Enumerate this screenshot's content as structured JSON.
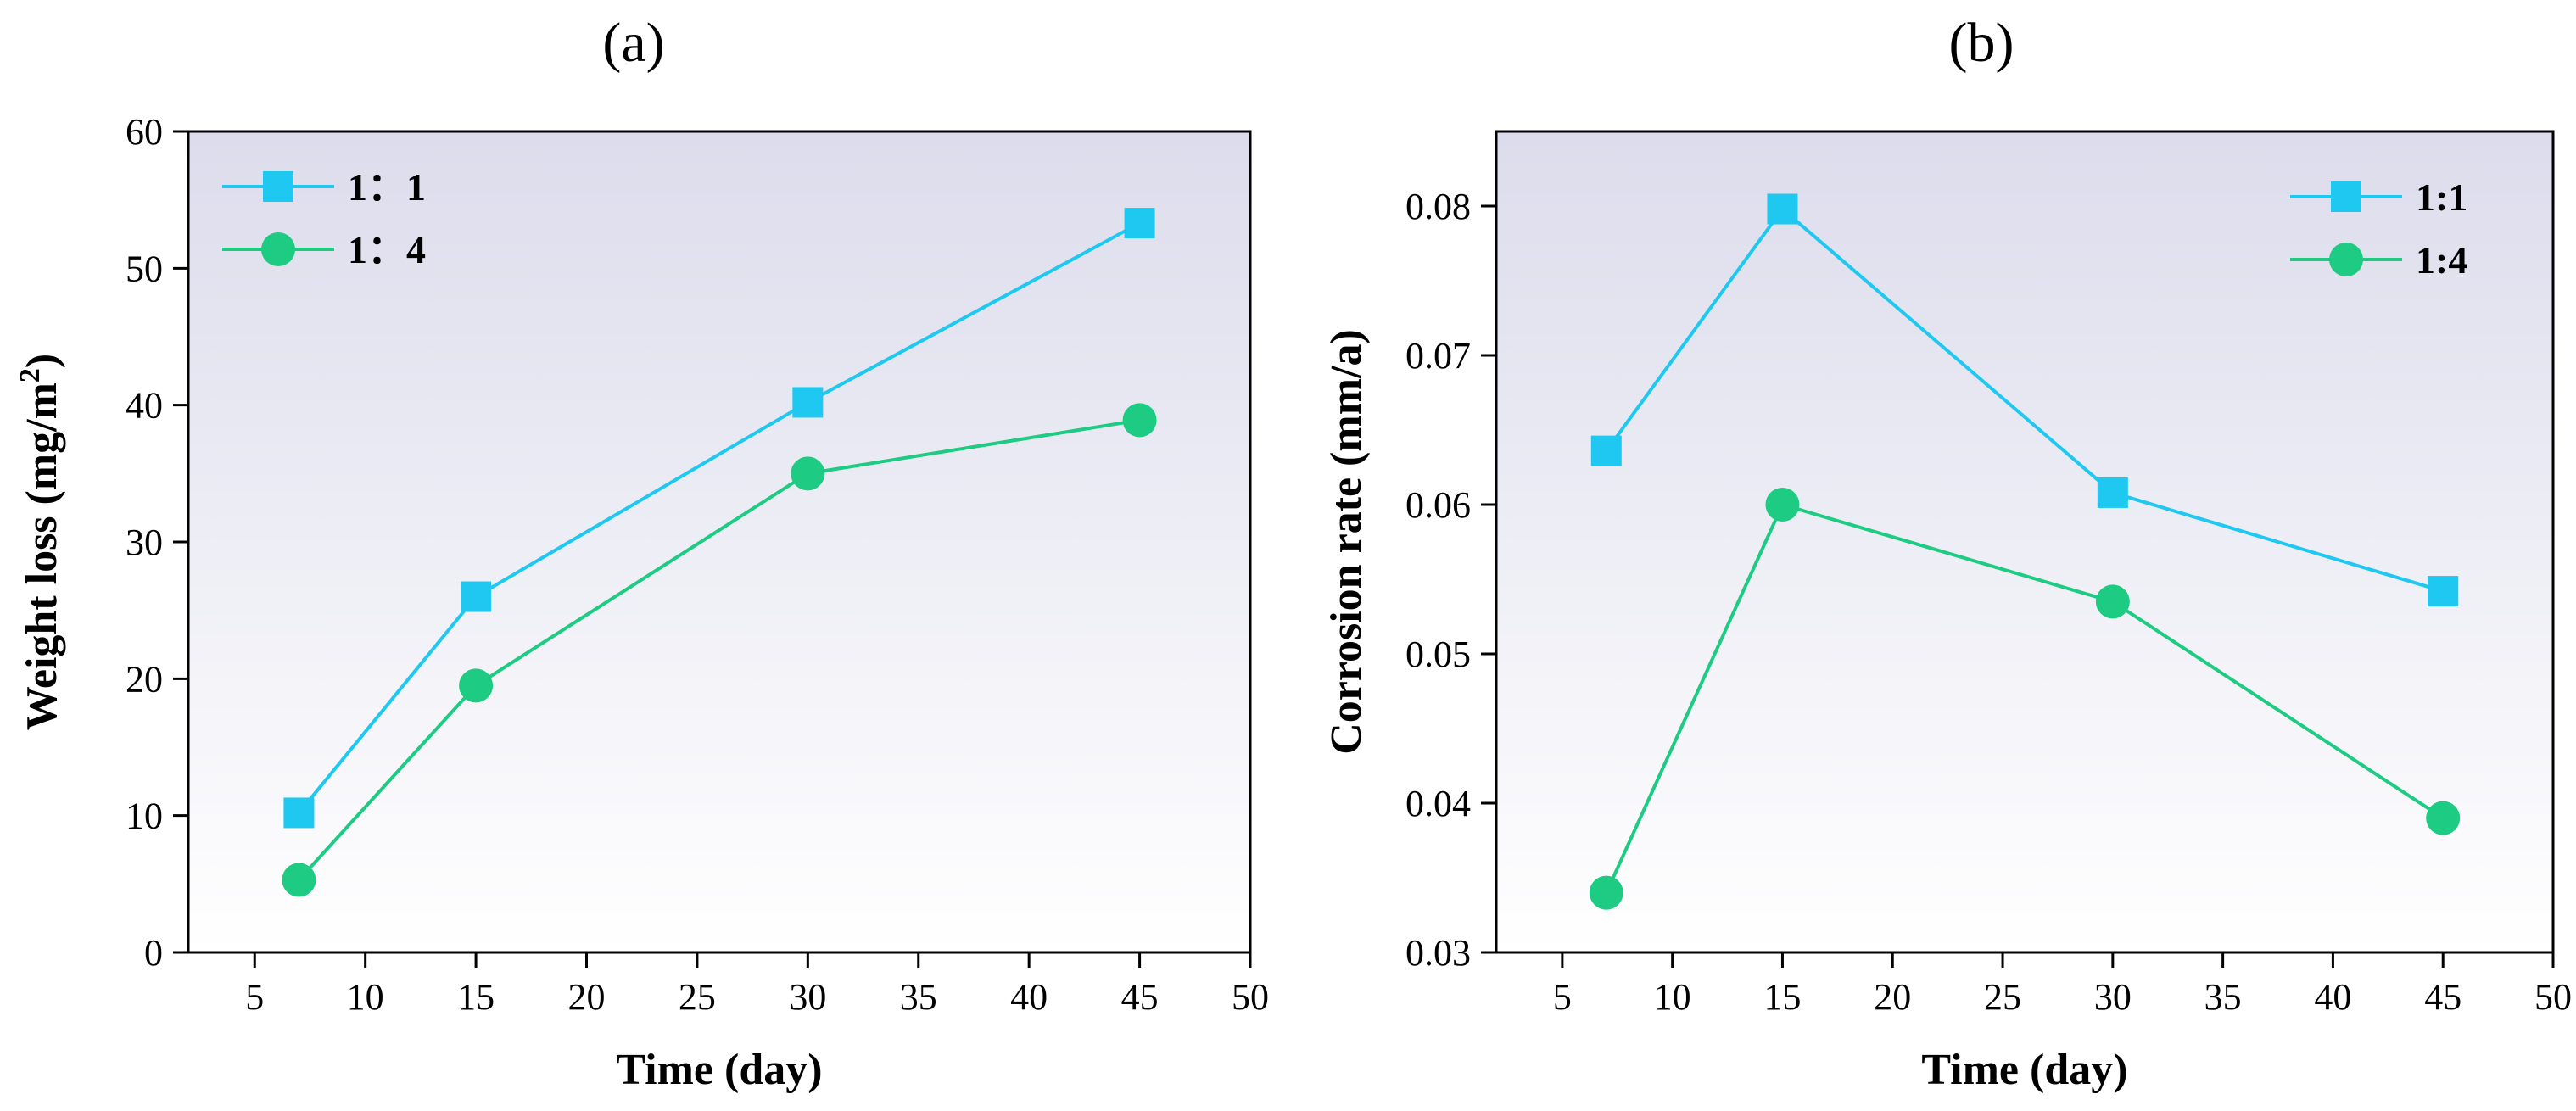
{
  "chart_data": [
    {
      "type": "line",
      "panel_label": "(a)",
      "title": "",
      "xlabel": "Time (day)",
      "ylabel": "Weight loss (mg/m²)",
      "ylabel_parts": {
        "main": "Weight loss (mg/m",
        "sup": "2",
        "end": ")"
      },
      "xlim": [
        2,
        50
      ],
      "ylim": [
        0,
        60
      ],
      "xticks": [
        5,
        10,
        15,
        20,
        25,
        30,
        35,
        40,
        45,
        50
      ],
      "yticks": [
        0,
        10,
        20,
        30,
        40,
        50,
        60
      ],
      "legend_position": "top-left",
      "x": [
        7,
        15,
        30,
        45
      ],
      "series": [
        {
          "name": "1：1",
          "marker": "square",
          "color": "#1EC8F0",
          "values": [
            10.2,
            26.0,
            40.2,
            53.3
          ]
        },
        {
          "name": "1：4",
          "marker": "circle",
          "color": "#1DCB82",
          "values": [
            5.3,
            19.5,
            35.0,
            38.9
          ]
        }
      ]
    },
    {
      "type": "line",
      "panel_label": "(b)",
      "title": "",
      "xlabel": "Time (day)",
      "ylabel": "Corrosion rate (mm/a)",
      "xlim": [
        2,
        50
      ],
      "ylim": [
        0.03,
        0.085
      ],
      "xticks": [
        5,
        10,
        15,
        20,
        25,
        30,
        35,
        40,
        45,
        50
      ],
      "yticks": [
        0.03,
        0.04,
        0.05,
        0.06,
        0.07,
        0.08
      ],
      "ytick_labels": [
        "0.03",
        "0.04",
        "0.05",
        "0.06",
        "0.07",
        "0.08"
      ],
      "legend_position": "top-right",
      "x": [
        7,
        15,
        30,
        45
      ],
      "series": [
        {
          "name": "1:1",
          "marker": "square",
          "color": "#1EC8F0",
          "values": [
            0.0636,
            0.0798,
            0.0608,
            0.0542
          ]
        },
        {
          "name": "1:4",
          "marker": "circle",
          "color": "#1DCB82",
          "values": [
            0.034,
            0.06,
            0.0535,
            0.039
          ]
        }
      ]
    }
  ]
}
